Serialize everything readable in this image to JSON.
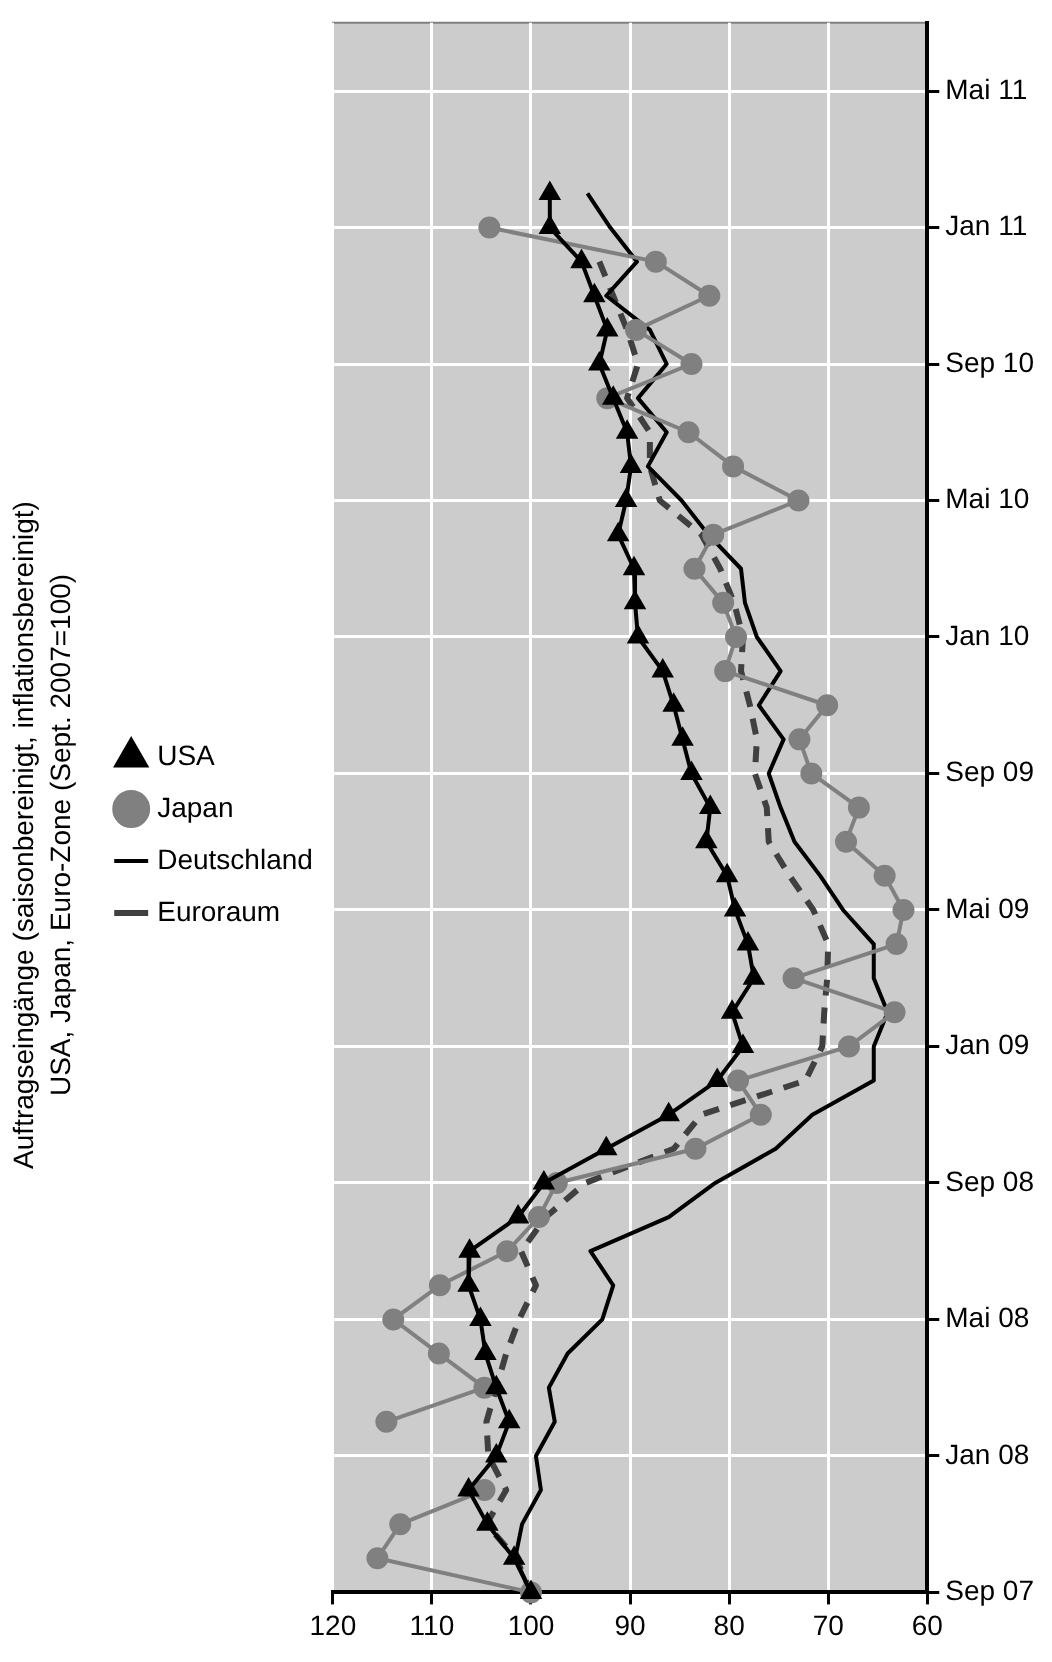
{
  "chart_data": {
    "type": "line",
    "orientation": "horizontal",
    "title": "Auftragseingänge (saisonbereinigt, inflationsbereinigt)",
    "subtitle": "USA, Japan, Euro-Zone (Sept. 2007=100)",
    "categories": [
      null,
      null,
      "Mai 11",
      null,
      null,
      null,
      "Jan 11",
      null,
      null,
      null,
      "Sep 10",
      null,
      null,
      null,
      "Mai 10",
      null,
      null,
      null,
      "Jan 10",
      null,
      null,
      null,
      "Sep 09",
      null,
      null,
      null,
      "Mai 09",
      null,
      null,
      null,
      "Jan 09",
      null,
      null,
      null,
      "Sep 08",
      null,
      null,
      null,
      "Mai 08",
      null,
      null,
      null,
      "Jan 08",
      null,
      null,
      null,
      "Sep 07"
    ],
    "series": [
      {
        "name": "USA",
        "color": "#000000",
        "marker": "triangle",
        "line_style": "solid",
        "values": [
          null,
          null,
          null,
          null,
          null,
          98.1,
          98.1,
          94.9,
          93.6,
          92.3,
          93.1,
          91.7,
          90.3,
          89.9,
          90.4,
          91.2,
          89.6,
          89.5,
          89.2,
          86.7,
          85.6,
          84.7,
          83.8,
          81.9,
          82.3,
          80.2,
          79.4,
          78.1,
          77.5,
          79.7,
          78.6,
          81.2,
          86.1,
          92.4,
          98.7,
          101.3,
          106.2,
          106.3,
          105.1,
          104.6,
          103.5,
          102.2,
          103.5,
          106.3,
          104.4,
          101.7,
          100
        ]
      },
      {
        "name": "Japan",
        "color": "#808080",
        "marker": "circle",
        "line_style": "solid",
        "values": [
          null,
          null,
          null,
          null,
          null,
          null,
          104.2,
          87.4,
          82,
          89.4,
          83.8,
          92.3,
          84.1,
          79.6,
          73,
          81.6,
          83.5,
          80.6,
          79.3,
          80.4,
          70.1,
          72.9,
          71.7,
          66.9,
          68.2,
          64.3,
          62.4,
          63.1,
          73.5,
          63.3,
          67.9,
          79.1,
          76.8,
          83.4,
          97.4,
          99.2,
          102.4,
          109.2,
          113.9,
          109.3,
          104.7,
          114.6,
          null,
          104.7,
          113.2,
          115.5,
          100
        ]
      },
      {
        "name": "Deutschland",
        "color": "#000000",
        "marker": "none",
        "line_style": "solid",
        "values": [
          null,
          null,
          null,
          null,
          null,
          94.3,
          92,
          89.3,
          92.4,
          88,
          86.3,
          89.2,
          86.3,
          88.2,
          84.8,
          82.1,
          78.8,
          78.4,
          77.2,
          74.8,
          77,
          74.5,
          76,
          74.8,
          73.4,
          70.8,
          68.5,
          65.4,
          65.4,
          64,
          65.4,
          65.4,
          71.6,
          75.3,
          81.4,
          86.1,
          94,
          91.7,
          92.8,
          96.3,
          98.2,
          97.6,
          99.5,
          99,
          100.9,
          101.6,
          100
        ]
      },
      {
        "name": "Euroraum",
        "color": "#404040",
        "marker": "none",
        "line_style": "dashed",
        "values": [
          null,
          null,
          null,
          null,
          null,
          null,
          null,
          93.1,
          91.7,
          90.3,
          89.2,
          90.3,
          88,
          88,
          87,
          82.8,
          80.9,
          79.5,
          78.6,
          78.8,
          77.9,
          77.2,
          77.4,
          76.2,
          76,
          73.9,
          71.5,
          70,
          70.1,
          70.4,
          70.6,
          72.3,
          82.8,
          85.6,
          94.5,
          98.5,
          101,
          99.5,
          101.2,
          102.5,
          103.5,
          104.5,
          104.3,
          102.5,
          104.5,
          101.5,
          100
        ]
      }
    ],
    "xlim": [
      120,
      60
    ],
    "xticks": [
      120,
      110,
      100,
      90,
      80,
      70,
      60
    ],
    "grid": true,
    "legend": "left"
  }
}
